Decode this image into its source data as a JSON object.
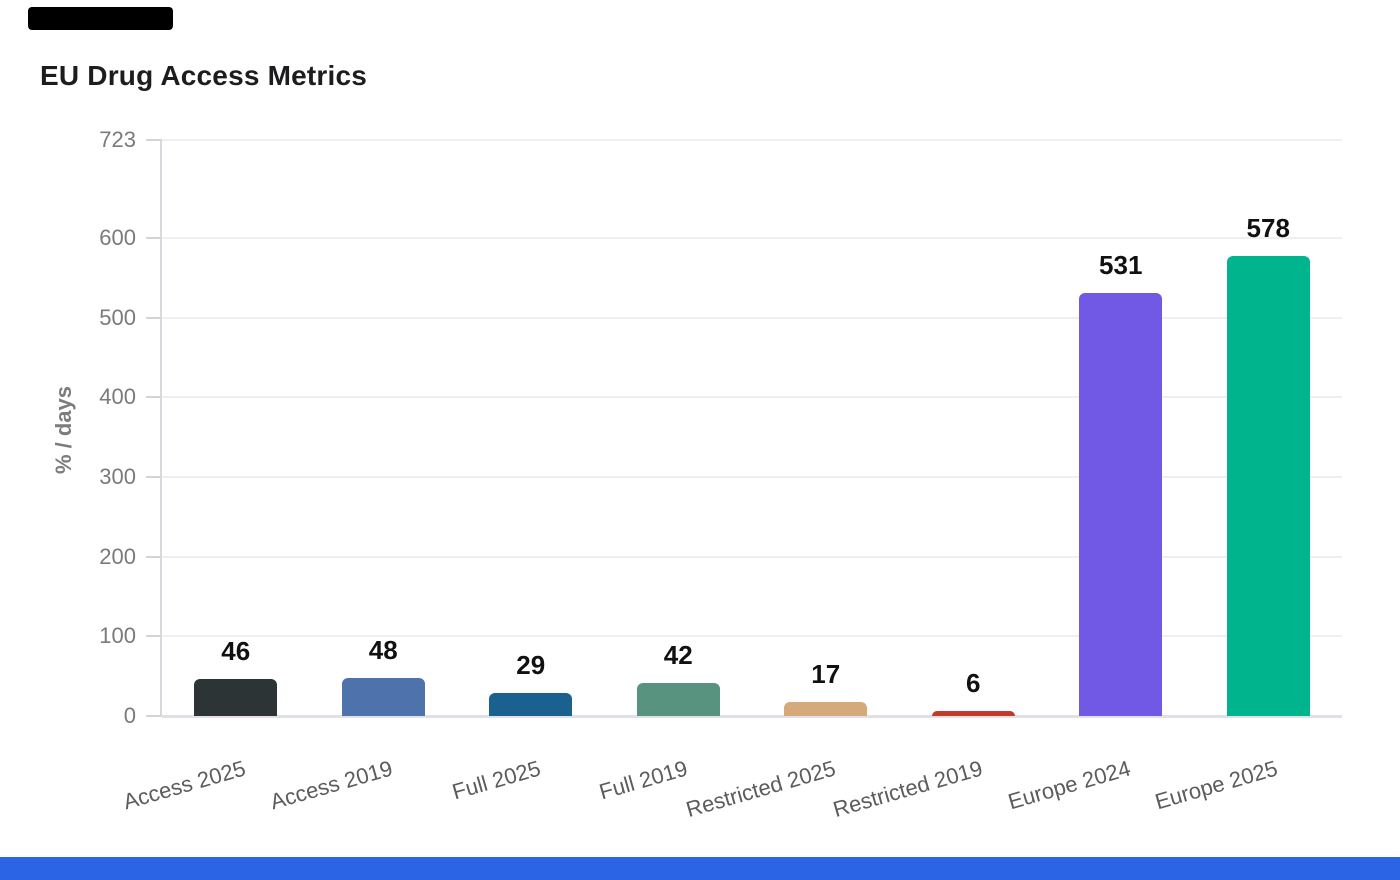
{
  "title": "EU Drug Access Metrics",
  "chart_data": {
    "type": "bar",
    "title": "EU Drug Access Metrics",
    "categories": [
      "Access 2025",
      "Access 2019",
      "Full 2025",
      "Full 2019",
      "Restricted 2025",
      "Restricted 2019",
      "Europe 2024",
      "Europe 2025"
    ],
    "values": [
      46,
      48,
      29,
      42,
      17,
      6,
      531,
      578
    ],
    "bar_colors": [
      "#2d3436",
      "#4e73ac",
      "#1a618f",
      "#58937f",
      "#d5a97a",
      "#c23a2b",
      "#7159e6",
      "#00b48e"
    ],
    "value_labels": [
      46,
      48,
      29,
      42,
      17,
      6,
      531,
      578
    ],
    "xlabel": "",
    "ylabel": "% / days",
    "ylim": [
      0,
      723
    ],
    "yticks": [
      0,
      100,
      200,
      300,
      400,
      500,
      600,
      723
    ],
    "grid": "horizontal",
    "legend": "none",
    "x_tick_rotation_deg": -16
  },
  "style": {
    "title_color": "#1d1d1f",
    "axis_text_color": "#7a7a7a",
    "x_label_color": "#5c5c5c",
    "value_label_color": "#111111",
    "gridline_color": "#efeff3",
    "axis_line_color": "#d8d8de",
    "background": "#ffffff"
  },
  "decorations": {
    "top_left_block_color": "#000000",
    "bottom_strip_color": "#2b65e5"
  }
}
